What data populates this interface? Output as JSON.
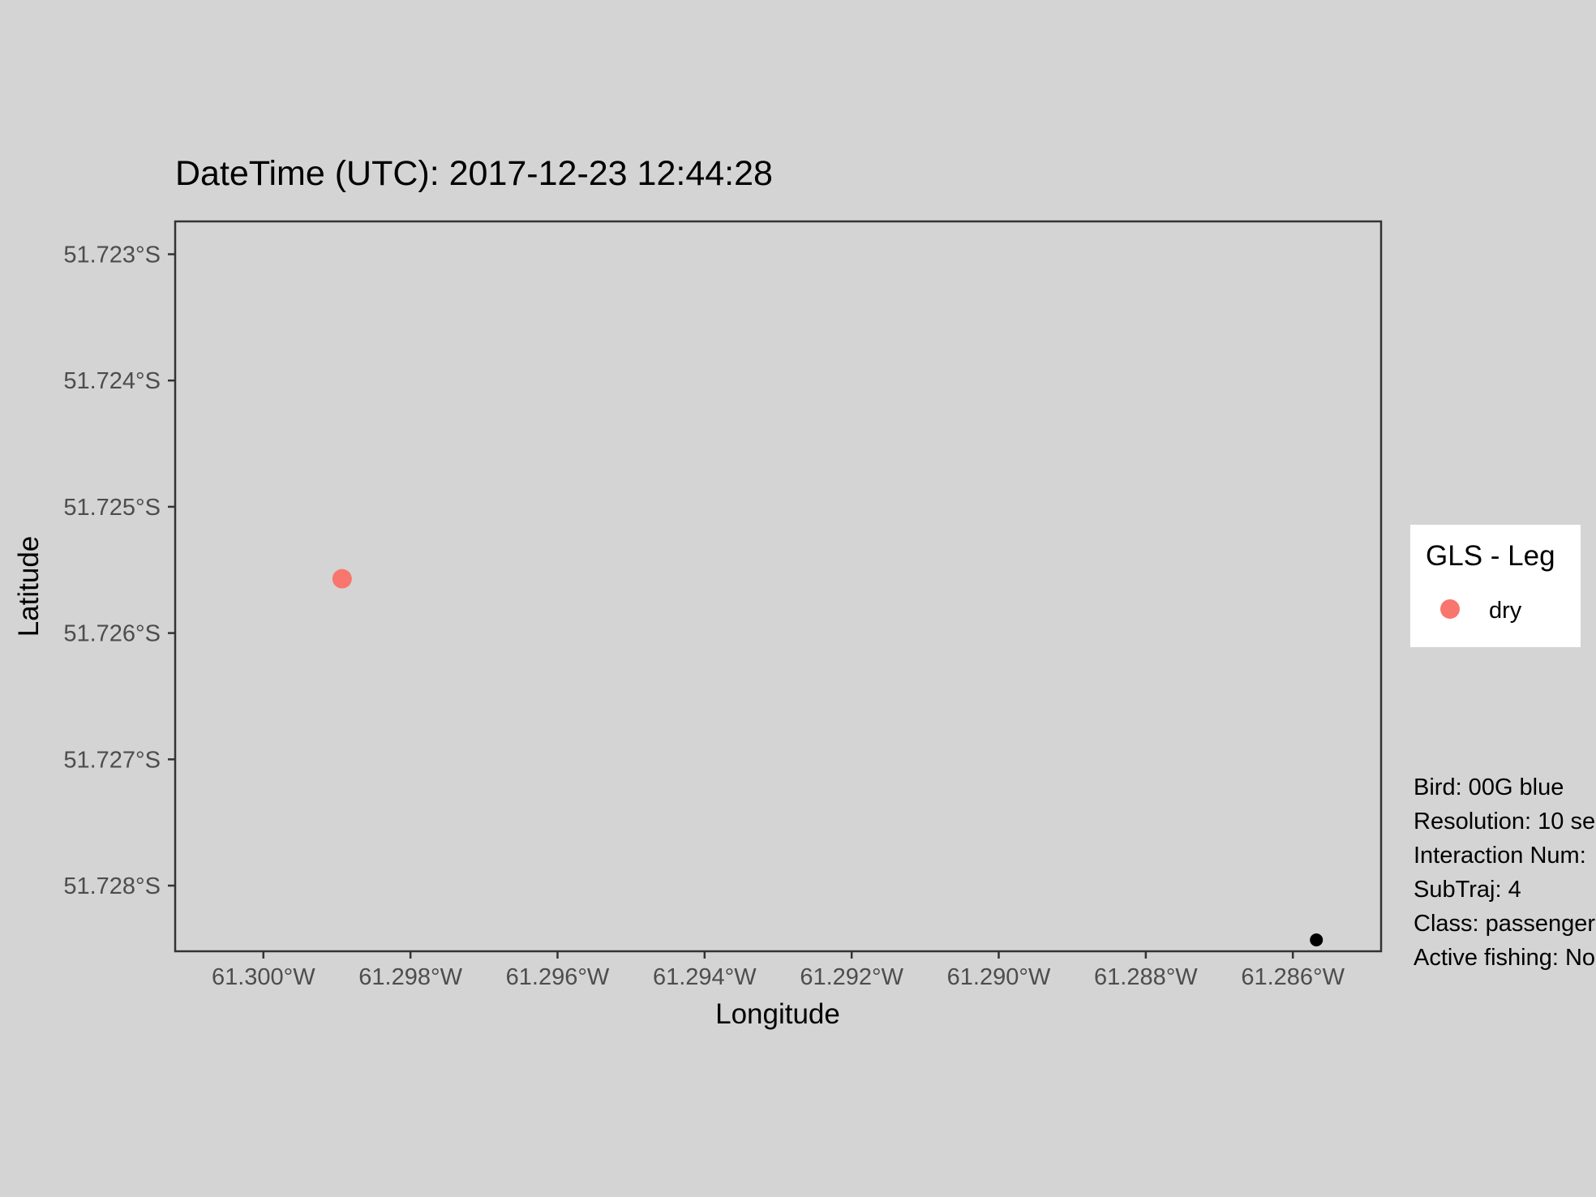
{
  "chart_data": {
    "type": "scatter",
    "title": "DateTime (UTC): 2017-12-23 12:44:28",
    "xlabel": "Longitude",
    "ylabel": "Latitude",
    "xlim": [
      -61.3012,
      -61.2848
    ],
    "ylim": [
      -51.72852,
      -51.72274
    ],
    "grid": false,
    "x_ticks": [
      -61.3,
      -61.298,
      -61.296,
      -61.294,
      -61.292,
      -61.29,
      -61.288,
      -61.286
    ],
    "x_tick_labels": [
      "61.300°W",
      "61.298°W",
      "61.296°W",
      "61.294°W",
      "61.292°W",
      "61.290°W",
      "61.288°W",
      "61.286°W"
    ],
    "y_ticks": [
      -51.723,
      -51.724,
      -51.725,
      -51.726,
      -51.727,
      -51.728
    ],
    "y_tick_labels": [
      "51.723°S",
      "51.724°S",
      "51.725°S",
      "51.726°S",
      "51.727°S",
      "51.728°S"
    ],
    "series": [
      {
        "name": "dry",
        "color": "#f8766d",
        "points": [
          {
            "x": -61.29893,
            "y": -51.72557
          }
        ]
      },
      {
        "color": "#000000",
        "points": [
          {
            "x": -61.28568,
            "y": -51.72843
          }
        ]
      }
    ],
    "legend": {
      "title": "GLS - Leg",
      "placement": "right",
      "entries": [
        {
          "label": "dry",
          "color": "#f8766d"
        }
      ]
    },
    "annotations": [
      "Bird: 00G blue",
      "Resolution: 10 se",
      "Interaction Num: ",
      "SubTraj: 4",
      "Class: passenger",
      "Active fishing: No"
    ]
  }
}
